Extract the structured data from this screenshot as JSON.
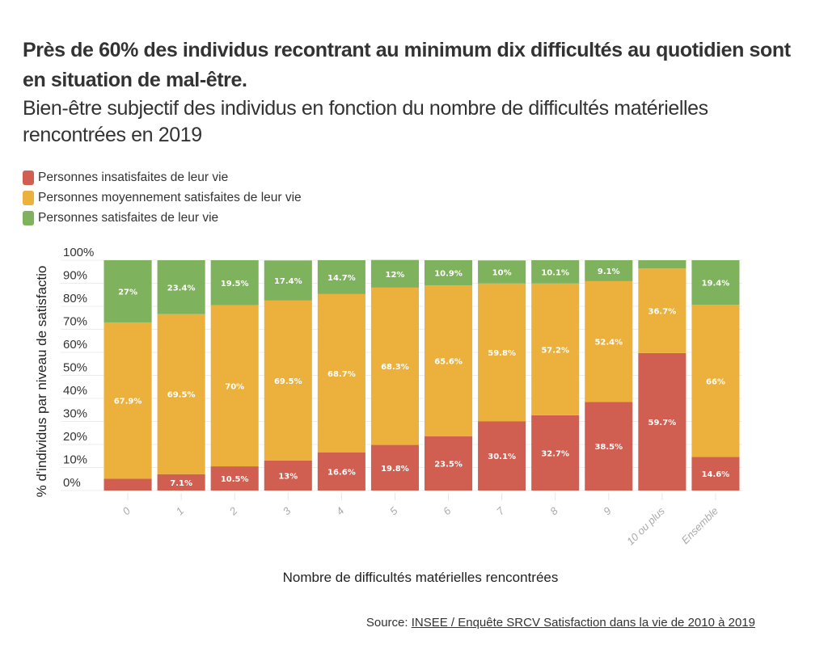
{
  "colors": {
    "insatisfaits": "#d05e51",
    "moyens": "#ebb13c",
    "satisfaits": "#7fb25d",
    "grid": "#ececec",
    "text": "#333333"
  },
  "source": {
    "prefix": "Source: ",
    "link_text": "INSEE / Enquête SRCV Satisfaction dans la vie de 2010 à 2019"
  },
  "chart_data": {
    "type": "bar",
    "stacked": true,
    "normalized": true,
    "title": "Près de 60% des individus recontrant au minimum dix difficultés au quotidien sont en situation de mal-être.",
    "subtitle": "Bien-être subjectif des individus en fonction du nombre de difficultés matérielles rencontrées en 2019",
    "xlabel": "Nombre de difficultés matérielles rencontrées",
    "ylabel": "% d'individus par niveau de satisfactio",
    "ylim": [
      0,
      100
    ],
    "yticks": [
      "0%",
      "10%",
      "20%",
      "30%",
      "40%",
      "50%",
      "60%",
      "70%",
      "80%",
      "90%",
      "100%"
    ],
    "grid": true,
    "legend_position": "top-left",
    "categories": [
      "0",
      "1",
      "2",
      "3",
      "4",
      "5",
      "6",
      "7",
      "8",
      "9",
      "10 ou plus",
      "Ensemble"
    ],
    "series": [
      {
        "name": "Personnes insatisfaites de leur vie",
        "color_key": "insatisfaits",
        "values": [
          5.1,
          7.1,
          10.5,
          13,
          16.6,
          19.8,
          23.5,
          30.1,
          32.7,
          38.5,
          59.7,
          14.6
        ],
        "labels": [
          "",
          "7.1%",
          "10.5%",
          "13%",
          "16.6%",
          "19.8%",
          "23.5%",
          "30.1%",
          "32.7%",
          "38.5%",
          "59.7%",
          "14.6%"
        ]
      },
      {
        "name": "Personnes moyennement satisfaites de leur vie",
        "color_key": "moyens",
        "values": [
          67.9,
          69.5,
          70,
          69.5,
          68.7,
          68.3,
          65.6,
          59.8,
          57.2,
          52.4,
          36.7,
          66
        ],
        "labels": [
          "67.9%",
          "69.5%",
          "70%",
          "69.5%",
          "68.7%",
          "68.3%",
          "65.6%",
          "59.8%",
          "57.2%",
          "52.4%",
          "36.7%",
          "66%"
        ]
      },
      {
        "name": "Personnes satisfaites de leur vie",
        "color_key": "satisfaits",
        "values": [
          27,
          23.4,
          19.5,
          17.4,
          14.7,
          12,
          10.9,
          10,
          10.1,
          9.1,
          3.6,
          19.4
        ],
        "labels": [
          "27%",
          "23.4%",
          "19.5%",
          "17.4%",
          "14.7%",
          "12%",
          "10.9%",
          "10%",
          "10.1%",
          "9.1%",
          "",
          "19.4%"
        ]
      }
    ]
  }
}
